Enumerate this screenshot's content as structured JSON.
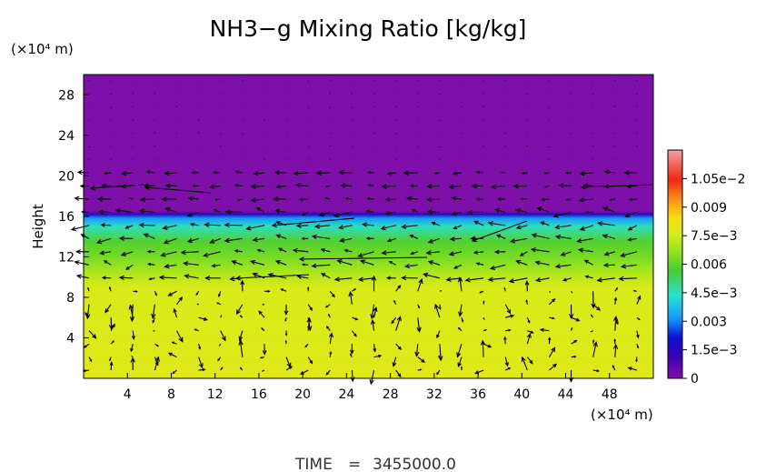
{
  "chart_data": {
    "type": "heatmap",
    "title": "NH3−g Mixing Ratio [kg/kg]",
    "ylabel": "Height",
    "y_unit_label": "(×10⁴ m)",
    "x_unit_label": "(×10⁴ m)",
    "xlim": [
      0,
      52
    ],
    "ylim": [
      0,
      30
    ],
    "x_ticks": [
      "4",
      "8",
      "12",
      "16",
      "20",
      "24",
      "28",
      "32",
      "36",
      "40",
      "44",
      "48"
    ],
    "y_ticks": [
      "4",
      "8",
      "12",
      "16",
      "20",
      "24",
      "28"
    ],
    "x_tick_values": [
      4,
      8,
      12,
      16,
      20,
      24,
      28,
      32,
      36,
      40,
      44,
      48
    ],
    "y_tick_values": [
      4,
      8,
      12,
      16,
      20,
      24,
      28
    ],
    "colorbar": {
      "labels": [
        "1.05e−2",
        "0.009",
        "7.5e−3",
        "0.006",
        "4.5e−3",
        "0.003",
        "1.5e−3",
        "0"
      ],
      "label_values": [
        0.0105,
        0.009,
        0.0075,
        0.006,
        0.0045,
        0.003,
        0.0015,
        0
      ],
      "max": 0.012
    },
    "field_profile": [
      {
        "y": 30.0,
        "value": 0.0
      },
      {
        "y": 16.5,
        "value": 0.0
      },
      {
        "y": 16.2,
        "value": 0.0015
      },
      {
        "y": 15.8,
        "value": 0.0032
      },
      {
        "y": 15.0,
        "value": 0.0045
      },
      {
        "y": 13.5,
        "value": 0.0058
      },
      {
        "y": 12.0,
        "value": 0.0063
      },
      {
        "y": 10.5,
        "value": 0.007
      },
      {
        "y": 9.0,
        "value": 0.0076
      },
      {
        "y": 0.0,
        "value": 0.0078
      }
    ],
    "vector_field": "wind vectors overlay"
  },
  "footer": {
    "time_label": "TIME",
    "time_eq": "=",
    "time_value": "3455000.0"
  },
  "colors": {
    "background": "#ffffff",
    "axis": "#000000",
    "top_region": "#7e0fa8",
    "arrow": "#000000"
  }
}
